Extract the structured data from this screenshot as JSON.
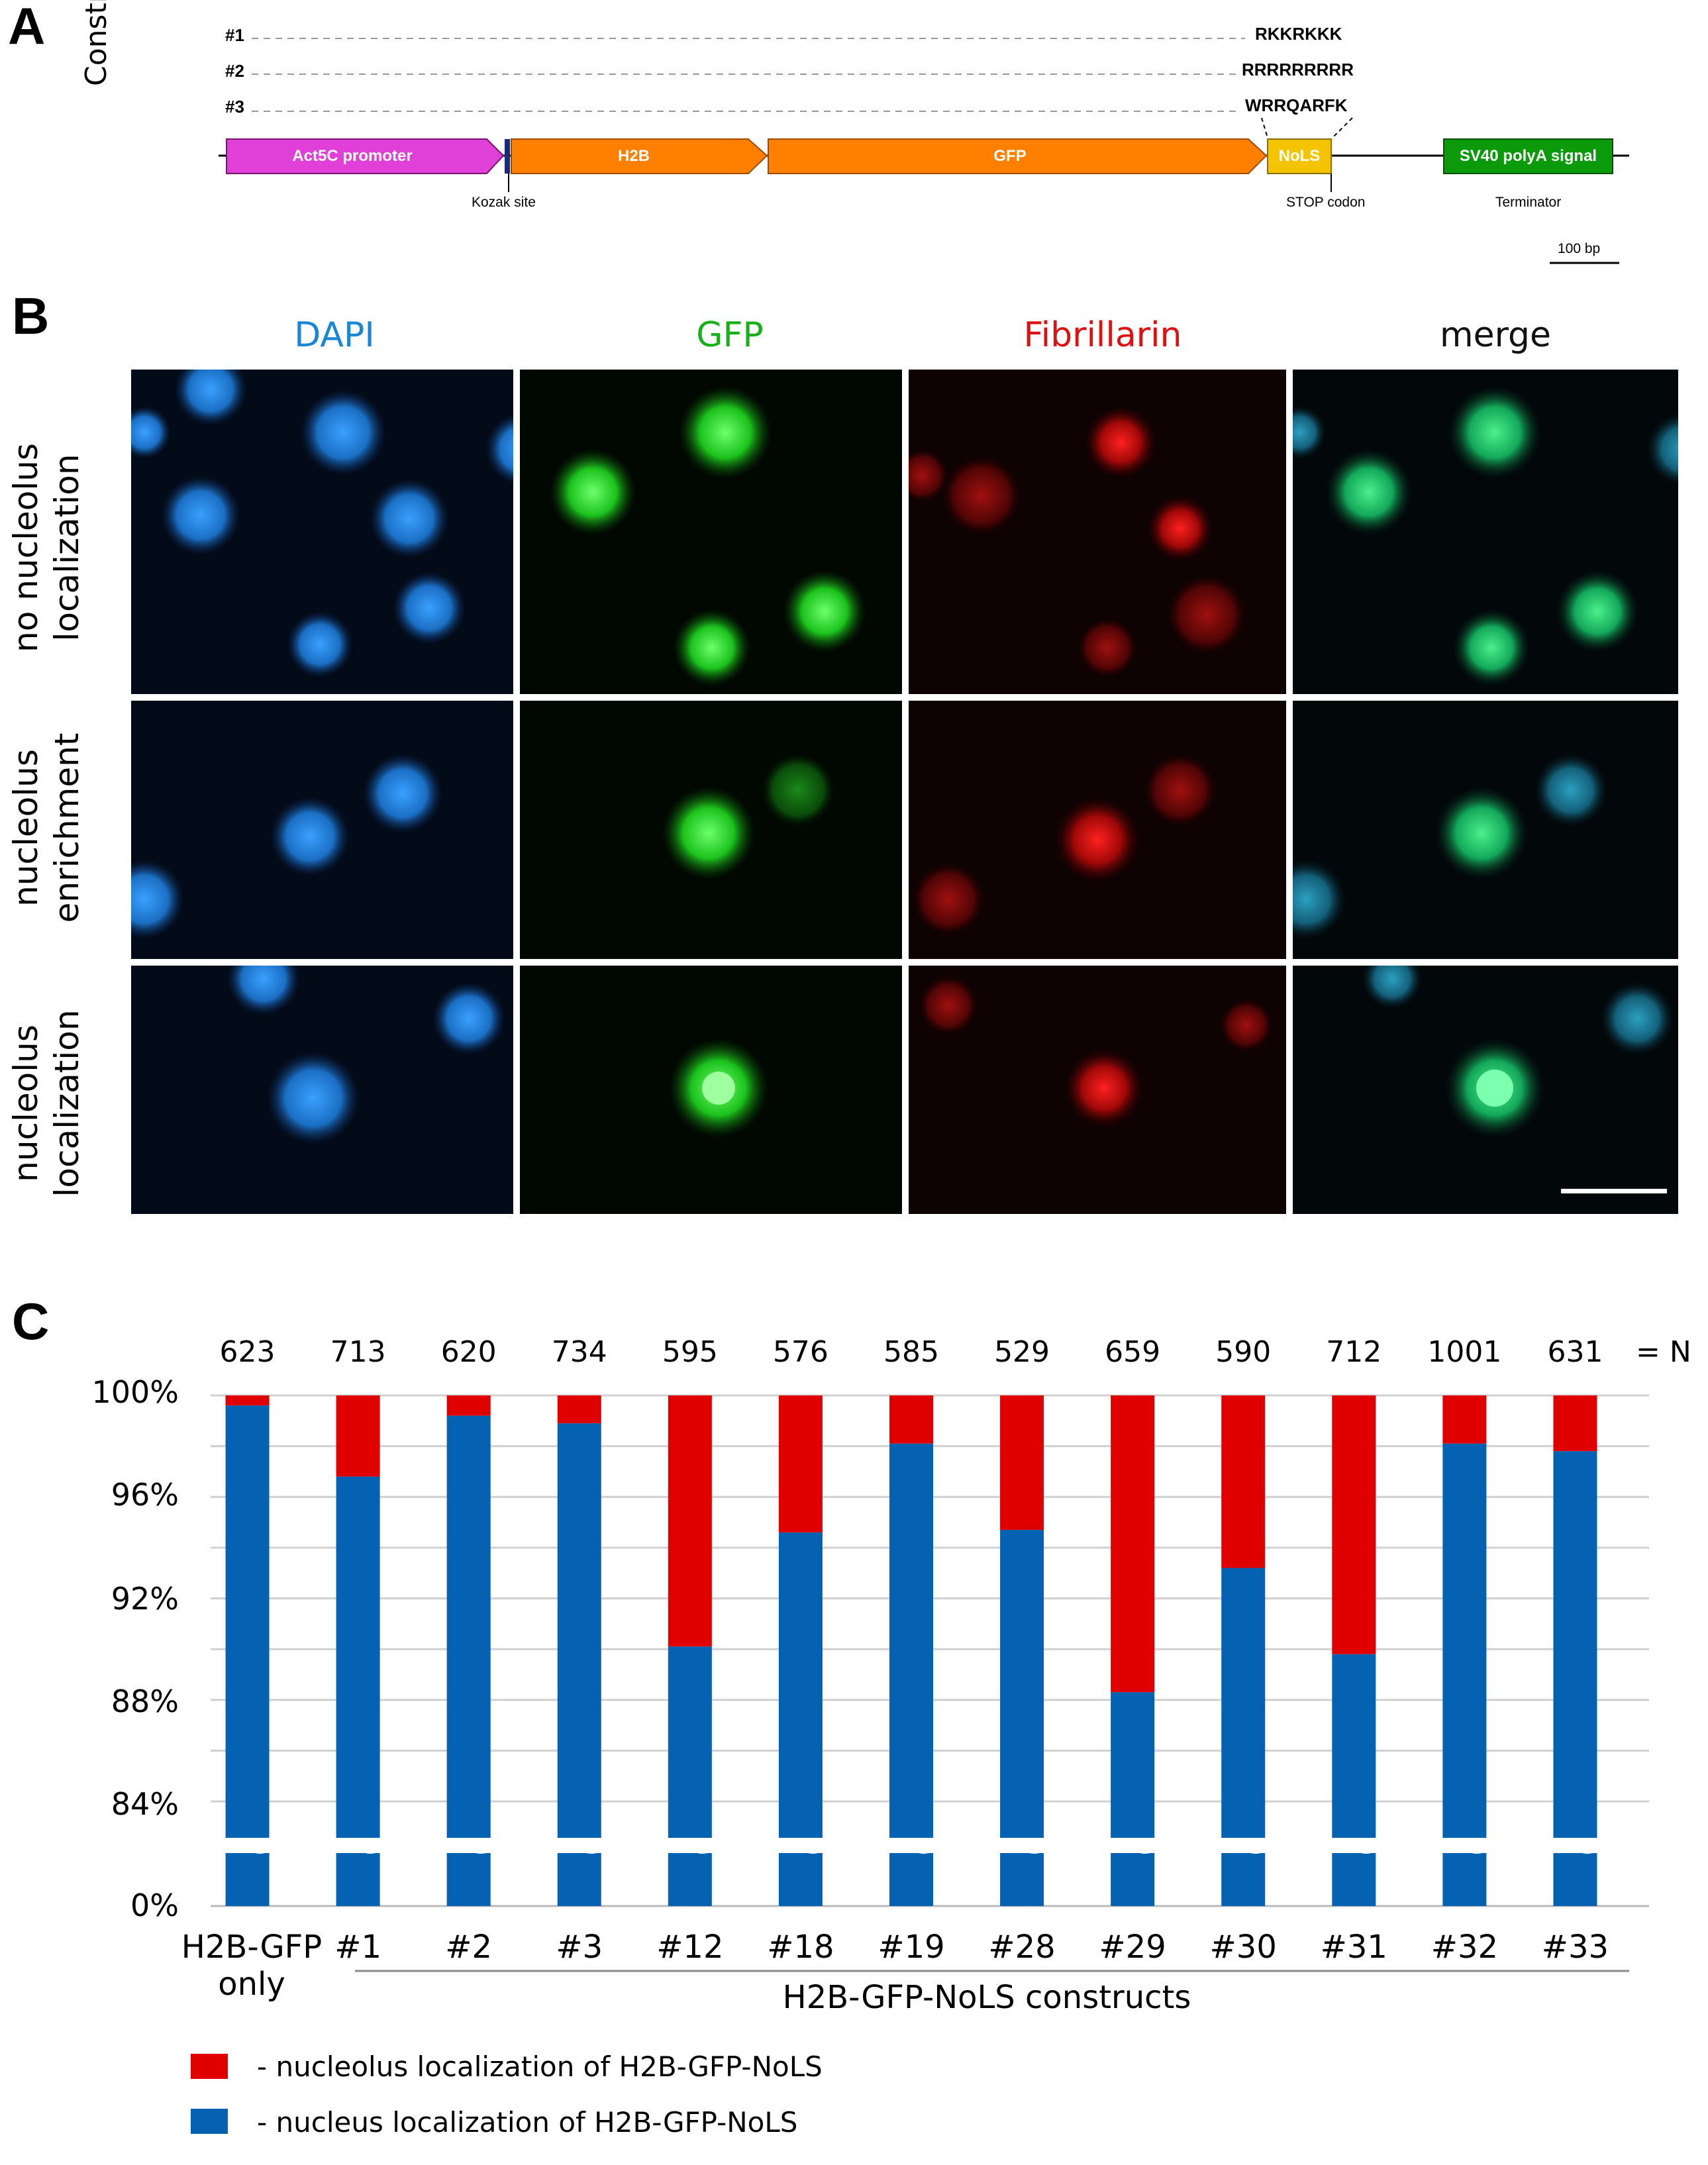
{
  "panels": {
    "a": "A",
    "b": "B",
    "c": "C"
  },
  "panel_a": {
    "side_label": "Constructs",
    "constructs": [
      {
        "id": "#1",
        "seq": "RKKRKKK"
      },
      {
        "id": "#2",
        "seq": "RRRRRRRRR"
      },
      {
        "id": "#3",
        "seq": "WRRQARFK"
      }
    ],
    "features": {
      "promoter": "Act5C promoter",
      "h2b": "H2B",
      "gfp": "GFP",
      "nols": "NoLS",
      "polya": "SV40 polyA signal"
    },
    "annotations": {
      "kozak": "Kozak site",
      "stop": "STOP codon",
      "terminator": "Terminator",
      "scale": "100 bp"
    },
    "colors": {
      "promoter": "#e040d8",
      "h2b": "#ff7f00",
      "gfp": "#ff7f00",
      "nols": "#f5c400",
      "polya": "#0a9a0a"
    }
  },
  "panel_b": {
    "columns": [
      "DAPI",
      "GFP",
      "Fibrillarin",
      "merge"
    ],
    "column_colors": [
      "#1a86d6",
      "#18b018",
      "#e01010",
      "#111111"
    ],
    "rows": [
      {
        "line1": "no nucleolus",
        "line2": "localization"
      },
      {
        "line1": "nucleolus",
        "line2": "enrichment"
      },
      {
        "line1": "nucleolus",
        "line2": "localization"
      }
    ]
  },
  "chart_data": {
    "type": "bar",
    "stacked": true,
    "axis_break": "between 0% and 84%",
    "y_ticks": [
      "100%",
      "96%",
      "92%",
      "88%",
      "84%",
      "0%"
    ],
    "ylim": [
      84,
      100
    ],
    "categories": [
      "H2B-GFP only",
      "#1",
      "#2",
      "#3",
      "#12",
      "#18",
      "#19",
      "#28",
      "#29",
      "#30",
      "#31",
      "#32",
      "#33"
    ],
    "n_values": [
      "623",
      "713",
      "620",
      "734",
      "595",
      "576",
      "585",
      "529",
      "659",
      "590",
      "712",
      "1001",
      "631"
    ],
    "n_suffix": "= N",
    "group_label": "H2B-GFP-NoLS constructs",
    "first_category_lines": [
      "H2B-GFP",
      "only"
    ],
    "series": [
      {
        "name": "- nucleus localization of H2B-GFP-NoLS",
        "color": "#0562b2",
        "values": [
          99.6,
          96.8,
          99.2,
          98.9,
          90.1,
          94.6,
          98.1,
          94.7,
          88.3,
          93.2,
          89.8,
          98.1,
          97.8
        ]
      },
      {
        "name": "- nucleolus localization of H2B-GFP-NoLS",
        "color": "#e00000",
        "values": [
          0.4,
          3.2,
          0.8,
          1.1,
          9.9,
          5.4,
          1.9,
          5.3,
          11.7,
          6.8,
          10.2,
          1.9,
          2.2
        ]
      }
    ]
  }
}
